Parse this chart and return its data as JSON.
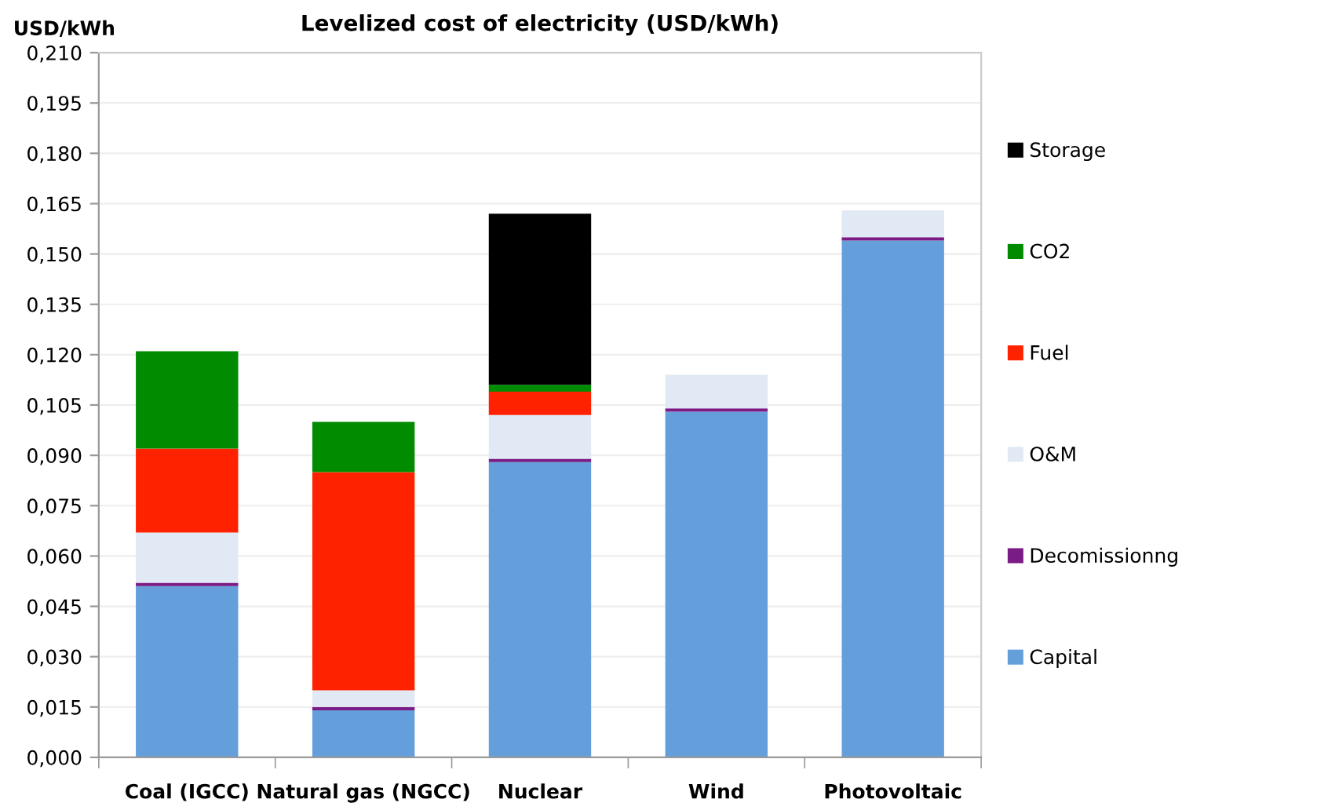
{
  "chart_data": {
    "type": "bar",
    "title": "Levelized cost of electricity (USD/kWh)",
    "ylabel": "USD/kWh",
    "categories": [
      "Coal (IGCC)",
      "Natural gas (NGCC)",
      "Nuclear",
      "Wind",
      "Photovoltaic"
    ],
    "stacked": true,
    "grid": "y",
    "legend": "right",
    "ylim": [
      0,
      0.21
    ],
    "yticks": [
      {
        "value": 0,
        "label": "0,000"
      },
      {
        "value": 0.015,
        "label": "0,015"
      },
      {
        "value": 0.03,
        "label": "0,030"
      },
      {
        "value": 0.045,
        "label": "0,045"
      },
      {
        "value": 0.06,
        "label": "0,060"
      },
      {
        "value": 0.075,
        "label": "0,075"
      },
      {
        "value": 0.09,
        "label": "0,090"
      },
      {
        "value": 0.105,
        "label": "0,105"
      },
      {
        "value": 0.12,
        "label": "0,120"
      },
      {
        "value": 0.135,
        "label": "0,135"
      },
      {
        "value": 0.15,
        "label": "0,150"
      },
      {
        "value": 0.165,
        "label": "0,165"
      },
      {
        "value": 0.18,
        "label": "0,180"
      },
      {
        "value": 0.195,
        "label": "0,195"
      },
      {
        "value": 0.21,
        "label": "0,210"
      }
    ],
    "series": [
      {
        "name": "Capital",
        "color": "#659fdb",
        "values": [
          0.051,
          0.014,
          0.088,
          0.103,
          0.154
        ]
      },
      {
        "name": "Decomissionng",
        "color": "#7b1c86",
        "values": [
          0.001,
          0.001,
          0.001,
          0.001,
          0.001
        ]
      },
      {
        "name": "O&M",
        "color": "#e1e9f4",
        "values": [
          0.015,
          0.005,
          0.013,
          0.01,
          0.008
        ]
      },
      {
        "name": "Fuel",
        "color": "#ff2200",
        "values": [
          0.025,
          0.065,
          0.007,
          null,
          null
        ]
      },
      {
        "name": "CO2",
        "color": "#008b00",
        "values": [
          0.029,
          0.015,
          0.002,
          null,
          null
        ]
      },
      {
        "name": "Storage",
        "color": "#000000",
        "values": [
          null,
          null,
          0.051,
          null,
          null
        ]
      }
    ]
  }
}
